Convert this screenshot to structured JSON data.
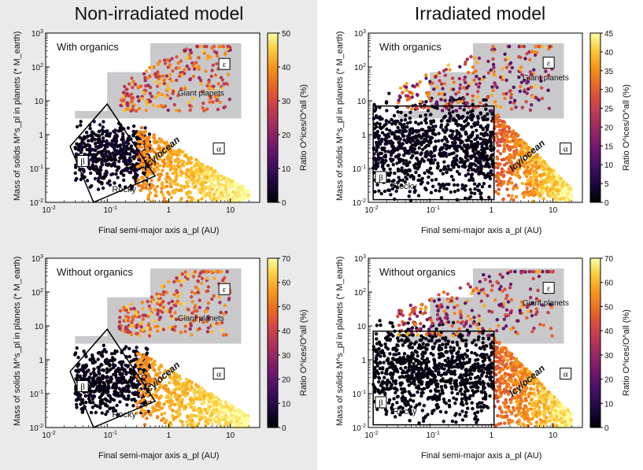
{
  "titles": {
    "left": "Non-irradiated model",
    "right": "Irradiated model"
  },
  "chart_data": [
    {
      "type": "scatter",
      "model": "non-irradiated",
      "title": "With organics",
      "xlabel": "Final semi-major axis a_pl (AU)",
      "ylabel": "Mass of solids M^s_pl in planets (* M_earth)",
      "xscale": "log",
      "yscale": "log",
      "xlim": [
        0.01,
        30
      ],
      "ylim": [
        0.01,
        1000
      ],
      "xticks": [
        "10^-2",
        "10^-1",
        "1",
        "10"
      ],
      "yticks": [
        "10^-2",
        "10^-1",
        "1",
        "10",
        "10^2",
        "10^3"
      ],
      "colorbar": {
        "label": "Ratio O^ices/O^all (%)",
        "range": [
          0,
          50
        ],
        "ticks": [
          "0",
          "10",
          "20",
          "30",
          "40",
          "50"
        ]
      },
      "regions": [
        {
          "label": "ε",
          "name": "Giant planets",
          "type": "giant"
        },
        {
          "label": "α",
          "name": "Icy/ocean",
          "type": "icy"
        },
        {
          "label": "β",
          "name": "Rocky",
          "type": "rocky"
        }
      ],
      "region_labels": {
        "giant": "Giant planets",
        "icy": "Icy/ocean",
        "rocky": "Rocky"
      },
      "clusters": [
        {
          "name": "rocky",
          "a_range": [
            0.03,
            0.5
          ],
          "m_range": [
            0.03,
            2
          ],
          "color_range": [
            0,
            5
          ]
        },
        {
          "name": "icy",
          "a_range": [
            0.3,
            20
          ],
          "m_range": [
            0.01,
            2
          ],
          "color_range": [
            35,
            50
          ]
        },
        {
          "name": "giant",
          "a_range": [
            0.15,
            10
          ],
          "m_range": [
            5,
            400
          ],
          "color_range": [
            20,
            45
          ]
        }
      ]
    },
    {
      "type": "scatter",
      "model": "irradiated",
      "title": "With organics",
      "xlabel": "Final semi-major axis a_pl (AU)",
      "ylabel": "Mass of solids M^s_pl in planets (* M_earth)",
      "xscale": "log",
      "yscale": "log",
      "xlim": [
        0.01,
        30
      ],
      "ylim": [
        0.01,
        1000
      ],
      "xticks": [
        "10^-2",
        "10^-1",
        "1",
        "10"
      ],
      "yticks": [
        "10^-2",
        "10^-1",
        "1",
        "10",
        "10^2",
        "10^3"
      ],
      "colorbar": {
        "label": "Ratio O^ices/O^all (%)",
        "range": [
          0,
          45
        ],
        "ticks": [
          "0",
          "5",
          "10",
          "15",
          "20",
          "25",
          "30",
          "35",
          "40",
          "45"
        ]
      },
      "regions": [
        {
          "label": "ε",
          "name": "Giant planets",
          "type": "giant"
        },
        {
          "label": "α",
          "name": "Icy/ocean",
          "type": "icy"
        },
        {
          "label": "β",
          "name": "Rocky",
          "type": "rocky"
        }
      ],
      "region_labels": {
        "giant": "Giant planets",
        "icy": "Icy/ocean",
        "rocky": "Rocky"
      },
      "clusters": [
        {
          "name": "rocky",
          "a_range": [
            0.012,
            1.1
          ],
          "m_range": [
            0.02,
            10
          ],
          "color_range": [
            0,
            3
          ]
        },
        {
          "name": "icy",
          "a_range": [
            1.1,
            20
          ],
          "m_range": [
            0.01,
            5
          ],
          "color_range": [
            25,
            45
          ]
        },
        {
          "name": "giant",
          "a_range": [
            0.03,
            10
          ],
          "m_range": [
            5,
            400
          ],
          "color_range": [
            10,
            40
          ]
        }
      ]
    },
    {
      "type": "scatter",
      "model": "non-irradiated",
      "title": "Without organics",
      "xlabel": "Final semi-major axis a_pl (AU)",
      "ylabel": "Mass of solids M^s_pl in planets (* M_earth)",
      "xscale": "log",
      "yscale": "log",
      "xlim": [
        0.01,
        30
      ],
      "ylim": [
        0.01,
        1000
      ],
      "xticks": [
        "10^-2",
        "10^-1",
        "1",
        "10"
      ],
      "yticks": [
        "10^-2",
        "10^-1",
        "1",
        "10",
        "10^2",
        "10^3"
      ],
      "colorbar": {
        "label": "Ratio O^ices/O^all (%)",
        "range": [
          0,
          70
        ],
        "ticks": [
          "0",
          "10",
          "20",
          "30",
          "40",
          "50",
          "60",
          "70"
        ]
      },
      "regions": [
        {
          "label": "ε",
          "name": "Giant planets",
          "type": "giant"
        },
        {
          "label": "α",
          "name": "Icy/ocean",
          "type": "icy"
        },
        {
          "label": "β",
          "name": "Rocky",
          "type": "rocky"
        }
      ],
      "region_labels": {
        "giant": "Giant planets",
        "icy": "Icy/ocean",
        "rocky": "Rocky"
      },
      "clusters": [
        {
          "name": "rocky",
          "a_range": [
            0.03,
            0.5
          ],
          "m_range": [
            0.03,
            2
          ],
          "color_range": [
            0,
            5
          ]
        },
        {
          "name": "icy",
          "a_range": [
            0.3,
            20
          ],
          "m_range": [
            0.01,
            2
          ],
          "color_range": [
            50,
            70
          ]
        },
        {
          "name": "giant",
          "a_range": [
            0.15,
            10
          ],
          "m_range": [
            5,
            400
          ],
          "color_range": [
            30,
            65
          ]
        }
      ]
    },
    {
      "type": "scatter",
      "model": "irradiated",
      "title": "Without organics",
      "xlabel": "Final semi-major axis a_pl (AU)",
      "ylabel": "Mass of solids M^s_pl in planets (* M_earth)",
      "xscale": "log",
      "yscale": "log",
      "xlim": [
        0.01,
        30
      ],
      "ylim": [
        0.01,
        1000
      ],
      "xticks": [
        "10^-2",
        "10^-1",
        "1",
        "10"
      ],
      "yticks": [
        "10^-2",
        "10^-1",
        "1",
        "10",
        "10^2",
        "10^3"
      ],
      "colorbar": {
        "label": "Ratio O^ices/O^all (%)",
        "range": [
          0,
          70
        ],
        "ticks": [
          "0",
          "10",
          "20",
          "30",
          "40",
          "50",
          "60",
          "70"
        ]
      },
      "regions": [
        {
          "label": "ε",
          "name": "Giant planets",
          "type": "giant"
        },
        {
          "label": "α",
          "name": "Icy/ocean",
          "type": "icy"
        },
        {
          "label": "β",
          "name": "Rocky",
          "type": "rocky"
        }
      ],
      "region_labels": {
        "giant": "Giant planets",
        "icy": "Icy/ocean",
        "rocky": "Rocky"
      },
      "clusters": [
        {
          "name": "rocky",
          "a_range": [
            0.012,
            1.1
          ],
          "m_range": [
            0.02,
            10
          ],
          "color_range": [
            0,
            3
          ]
        },
        {
          "name": "icy",
          "a_range": [
            1.1,
            20
          ],
          "m_range": [
            0.01,
            5
          ],
          "color_range": [
            40,
            70
          ]
        },
        {
          "name": "giant",
          "a_range": [
            0.03,
            10
          ],
          "m_range": [
            5,
            400
          ],
          "color_range": [
            15,
            60
          ]
        }
      ]
    }
  ]
}
